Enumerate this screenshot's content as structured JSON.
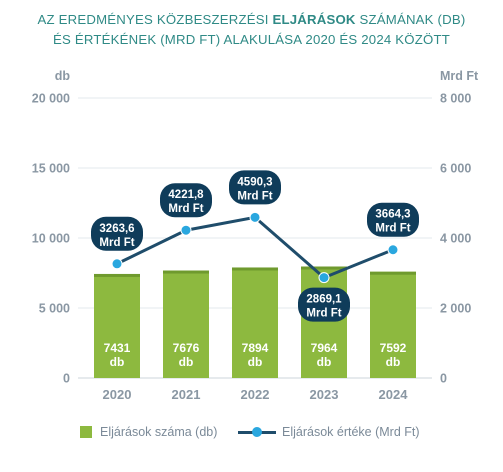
{
  "title": {
    "line1_before": "AZ EREDMÉNYES KÖZBESZERZÉSI ",
    "line1_bold": "ELJÁRÁSOK",
    "line1_after": " SZÁMÁNAK (DB)",
    "line2": "ÉS ÉRTÉKÉNEK (MRD FT) ALAKULÁSA 2020 ÉS 2024 KÖZÖTT"
  },
  "colors": {
    "bar": "#8db93f",
    "bar_dark": "#6f9a2e",
    "line": "#1f4d6b",
    "dot": "#2aa7df",
    "callout": "#0f3c5a",
    "axis_text": "#8a97a3",
    "grid": "#e3e8ec",
    "title": "#2f8a86"
  },
  "chart_data": {
    "type": "bar",
    "categories": [
      "2020",
      "2021",
      "2022",
      "2023",
      "2024"
    ],
    "y_left": {
      "label": "db",
      "ylim": [
        0,
        20000
      ],
      "ticks": [
        "0",
        "5 000",
        "10 000",
        "15 000",
        "20 000"
      ]
    },
    "y_right": {
      "label": "Mrd Ft",
      "ylim": [
        0,
        8000
      ],
      "ticks": [
        "0",
        "2 000",
        "4 000",
        "6 000",
        "8 000"
      ]
    },
    "series": [
      {
        "name": "Eljárások száma (db)",
        "type": "bar",
        "axis": "left",
        "values": [
          7431,
          7676,
          7894,
          7964,
          7592
        ],
        "labels": [
          "7431",
          "7676",
          "7894",
          "7964",
          "7592"
        ],
        "unit": "db"
      },
      {
        "name": "Eljárások értéke (Mrd Ft)",
        "type": "line",
        "axis": "right",
        "values": [
          3263.6,
          4221.8,
          4590.3,
          2869.1,
          3664.3
        ],
        "labels": [
          "3263,6",
          "4221,8",
          "4590,3",
          "2869,1",
          "3664,3"
        ],
        "unit": "Mrd Ft"
      }
    ],
    "grid": true,
    "legend": "bottom"
  }
}
